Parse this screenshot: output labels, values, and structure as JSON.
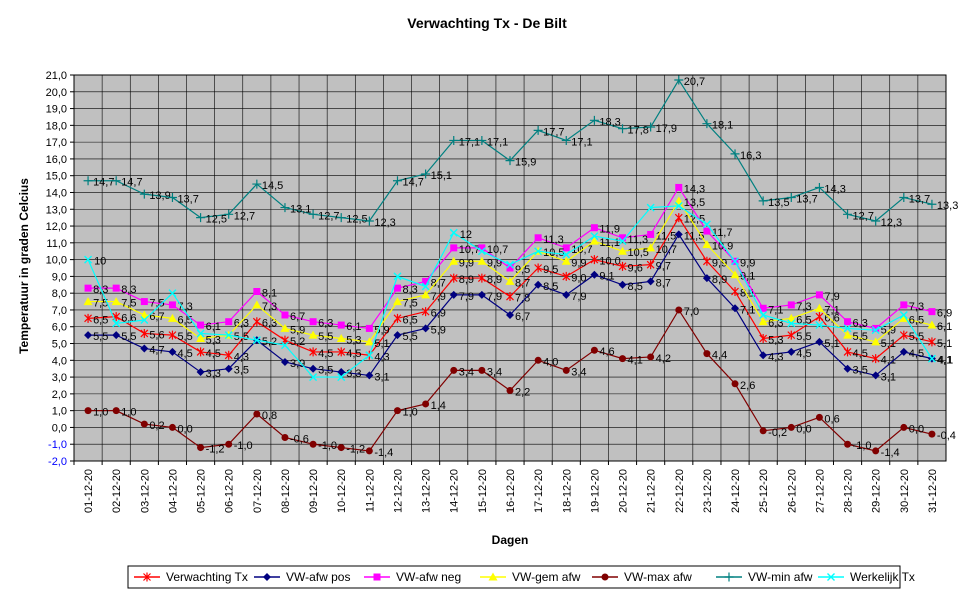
{
  "chart_data": {
    "type": "line",
    "title": "Verwachting Tx - De Bilt",
    "xlabel": "Dagen",
    "ylabel": "Temperatuur in graden Celcius",
    "ylim": [
      -2.0,
      21.0
    ],
    "ytick_step": 1.0,
    "grid": true,
    "legend_position": "bottom",
    "plot_background": "#c0c0c0",
    "categories": [
      "01-12-20",
      "02-12-20",
      "03-12-20",
      "04-12-20",
      "05-12-20",
      "06-12-20",
      "07-12-20",
      "08-12-20",
      "09-12-20",
      "10-12-20",
      "11-12-20",
      "12-12-20",
      "13-12-20",
      "14-12-20",
      "15-12-20",
      "16-12-20",
      "17-12-20",
      "18-12-20",
      "19-12-20",
      "20-12-20",
      "21-12-20",
      "22-12-20",
      "23-12-20",
      "24-12-20",
      "25-12-20",
      "26-12-20",
      "27-12-20",
      "28-12-20",
      "29-12-20",
      "30-12-20",
      "31-12-20"
    ],
    "series": [
      {
        "name": "Verwachting Tx",
        "color": "#ff0000",
        "marker": "star",
        "labels": true,
        "values": [
          6.5,
          6.6,
          5.6,
          5.5,
          4.5,
          4.3,
          6.3,
          5.2,
          4.5,
          4.5,
          4.3,
          6.5,
          6.9,
          8.9,
          8.9,
          7.8,
          9.5,
          9.0,
          10.0,
          9.6,
          9.7,
          12.5,
          9.9,
          8.1,
          5.3,
          5.5,
          6.6,
          4.5,
          4.1,
          5.5,
          5.1
        ]
      },
      {
        "name": "VW-afw pos",
        "color": "#000080",
        "marker": "diamond",
        "labels": true,
        "values": [
          5.5,
          5.5,
          4.7,
          4.5,
          3.3,
          3.5,
          5.2,
          3.9,
          3.5,
          3.3,
          3.1,
          5.5,
          5.9,
          7.9,
          7.9,
          6.7,
          8.5,
          7.9,
          9.1,
          8.5,
          8.7,
          11.5,
          8.9,
          7.1,
          4.3,
          4.5,
          5.1,
          3.5,
          3.1,
          4.5,
          4.1
        ]
      },
      {
        "name": "VW-afw neg",
        "color": "#ff00ff",
        "marker": "square",
        "labels": true,
        "values": [
          8.3,
          8.3,
          7.5,
          7.3,
          6.1,
          6.3,
          8.1,
          6.7,
          6.3,
          6.1,
          5.9,
          8.3,
          8.7,
          10.7,
          10.7,
          9.5,
          11.3,
          10.7,
          11.9,
          11.3,
          11.5,
          14.3,
          11.7,
          9.9,
          7.1,
          7.3,
          7.9,
          6.3,
          5.9,
          7.3,
          6.9
        ]
      },
      {
        "name": "VW-gem afw",
        "color": "#ffff00",
        "marker": "triangle",
        "labels": true,
        "values": [
          7.5,
          7.5,
          6.7,
          6.5,
          5.3,
          5.5,
          7.3,
          5.9,
          5.5,
          5.3,
          5.1,
          7.5,
          7.9,
          9.9,
          9.9,
          8.7,
          10.5,
          9.9,
          11.1,
          10.5,
          10.7,
          13.5,
          10.9,
          9.1,
          6.3,
          6.5,
          7.1,
          5.5,
          5.1,
          6.5,
          6.1
        ]
      },
      {
        "name": "VW-max afw",
        "color": "#800000",
        "marker": "circle",
        "labels": true,
        "values": [
          1.0,
          1.0,
          0.2,
          0.0,
          -1.2,
          -1.0,
          0.8,
          -0.6,
          -1.0,
          -1.2,
          -1.4,
          1.0,
          1.4,
          3.4,
          3.4,
          2.2,
          4.0,
          3.4,
          4.6,
          4.1,
          4.2,
          7.0,
          4.4,
          2.6,
          -0.2,
          0.0,
          0.6,
          -1.0,
          -1.4,
          0.0,
          -0.4
        ]
      },
      {
        "name": "VW-min afw",
        "color": "#008080",
        "marker": "plus",
        "labels": true,
        "values": [
          14.7,
          14.7,
          13.9,
          13.7,
          12.5,
          12.7,
          14.5,
          13.1,
          12.7,
          12.5,
          12.3,
          14.7,
          15.1,
          17.1,
          17.1,
          15.9,
          17.7,
          17.1,
          18.3,
          17.8,
          17.9,
          20.7,
          18.1,
          16.3,
          13.5,
          13.7,
          14.3,
          12.7,
          12.3,
          13.7,
          13.3
        ]
      },
      {
        "name": "Werkelijk Tx",
        "color": "#00ffff",
        "marker": "x",
        "labels": false,
        "values": [
          10.0,
          6.2,
          6.4,
          8.0,
          5.6,
          5.5,
          5.2,
          4.9,
          3.0,
          3.0,
          4.3,
          9.0,
          8.4,
          11.6,
          10.5,
          9.7,
          10.5,
          10.3,
          11.4,
          11.1,
          13.1,
          13.2,
          12.1,
          9.9,
          6.7,
          6.2,
          6.1,
          5.9,
          5.8,
          6.7,
          4.1
        ]
      }
    ],
    "special_labels": {
      "Werkelijk Tx": [
        {
          "index": 0,
          "text": "10"
        },
        {
          "index": 13,
          "text": "12"
        },
        {
          "index": 30,
          "text": "4,1"
        }
      ]
    }
  }
}
